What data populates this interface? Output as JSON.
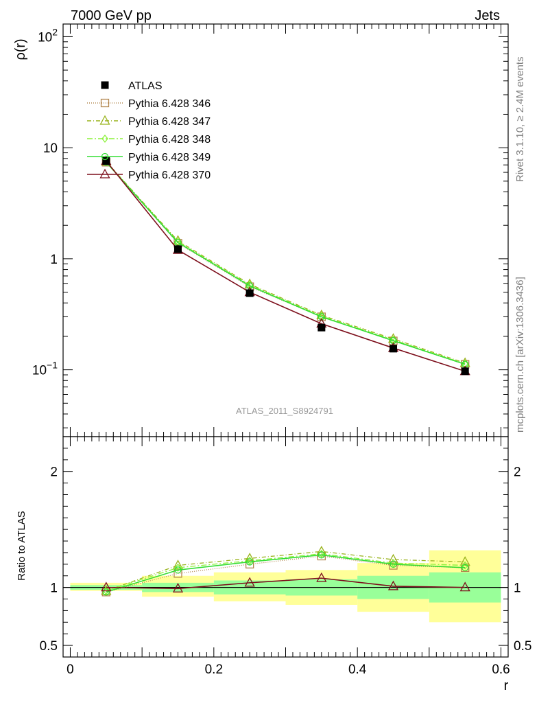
{
  "header": {
    "left": "7000 GeV pp",
    "right": "Jets"
  },
  "side_labels": {
    "top": "Rivet 3.1.10, ≥ 2.4M events",
    "bottom": "mcplots.cern.ch [arXiv:1306.3436]"
  },
  "watermark": "ATLAS_2011_S8924791",
  "colors": {
    "atlas": "#000000",
    "p346": "#b2874f",
    "p347": "#99b31c",
    "p348": "#8cf23a",
    "p349": "#33dd33",
    "p370": "#7d0f1c",
    "band_inner": "#99ff99",
    "band_outer": "#ffff99"
  },
  "chart_data": [
    {
      "type": "line",
      "panel": "main",
      "ylabel": "ρ(r)",
      "xlabel": "",
      "log_y": true,
      "xlim": [
        -0.01,
        0.61
      ],
      "ylim": [
        0.025,
        130
      ],
      "y_ticks": [
        {
          "value": 100,
          "label": "10",
          "exp": "2"
        },
        {
          "value": 10,
          "label": "10",
          "exp": ""
        },
        {
          "value": 1,
          "label": "1",
          "exp": ""
        },
        {
          "value": 0.1,
          "label": "10",
          "exp": "−1"
        }
      ],
      "legend_position": "top-left",
      "x": [
        0.05,
        0.15,
        0.25,
        0.35,
        0.45,
        0.55
      ],
      "series": [
        {
          "key": "atlas",
          "name": "ATLAS",
          "values": [
            7.6,
            1.22,
            0.49,
            0.24,
            0.155,
            0.097
          ],
          "marker": "square-filled",
          "dash": "none"
        },
        {
          "key": "p346",
          "name": "Pythia 6.428 346",
          "values": [
            7.4,
            1.38,
            0.56,
            0.3,
            0.182,
            0.112
          ],
          "marker": "square-open",
          "dash": "1,2"
        },
        {
          "key": "p347",
          "name": "Pythia 6.428 347",
          "values": [
            7.5,
            1.45,
            0.59,
            0.31,
            0.19,
            0.115
          ],
          "marker": "triangle-open",
          "dash": "6,3,1,3"
        },
        {
          "key": "p348",
          "name": "Pythia 6.428 348",
          "values": [
            7.45,
            1.42,
            0.58,
            0.305,
            0.186,
            0.113
          ],
          "marker": "diamond-open",
          "dash": "8,3,2,3"
        },
        {
          "key": "p349",
          "name": "Pythia 6.428 349",
          "values": [
            7.4,
            1.4,
            0.57,
            0.3,
            0.183,
            0.112
          ],
          "marker": "circle-open",
          "dash": "none"
        },
        {
          "key": "p370",
          "name": "Pythia 6.428 370",
          "values": [
            7.6,
            1.2,
            0.5,
            0.26,
            0.157,
            0.097
          ],
          "marker": "triangle-open",
          "dash": "none"
        }
      ]
    },
    {
      "type": "line",
      "panel": "ratio",
      "ylabel": "Ratio to ATLAS",
      "xlabel": "r",
      "xlim": [
        -0.01,
        0.61
      ],
      "ylim": [
        0.4,
        2.3
      ],
      "x_ticks": [
        {
          "value": 0,
          "label": "0"
        },
        {
          "value": 0.2,
          "label": "0.2"
        },
        {
          "value": 0.4,
          "label": "0.4"
        },
        {
          "value": 0.6,
          "label": "0.6"
        }
      ],
      "y_ticks": [
        {
          "value": 0.5,
          "label": "0.5"
        },
        {
          "value": 1,
          "label": "1"
        },
        {
          "value": 2,
          "label": "2"
        }
      ],
      "bands": [
        {
          "x0": 0.0,
          "x1": 0.1,
          "inner": [
            0.98,
            1.02
          ],
          "outer": [
            0.97,
            1.04
          ]
        },
        {
          "x0": 0.1,
          "x1": 0.2,
          "inner": [
            0.96,
            1.04
          ],
          "outer": [
            0.92,
            1.1
          ]
        },
        {
          "x0": 0.2,
          "x1": 0.3,
          "inner": [
            0.94,
            1.06
          ],
          "outer": [
            0.88,
            1.13
          ]
        },
        {
          "x0": 0.3,
          "x1": 0.4,
          "inner": [
            0.93,
            1.07
          ],
          "outer": [
            0.85,
            1.15
          ]
        },
        {
          "x0": 0.4,
          "x1": 0.5,
          "inner": [
            0.9,
            1.1
          ],
          "outer": [
            0.79,
            1.21
          ]
        },
        {
          "x0": 0.5,
          "x1": 0.6,
          "inner": [
            0.87,
            1.13
          ],
          "outer": [
            0.7,
            1.32
          ]
        }
      ],
      "x": [
        0.05,
        0.15,
        0.25,
        0.35,
        0.45,
        0.55
      ],
      "series": [
        {
          "key": "p346",
          "values": [
            0.96,
            1.12,
            1.2,
            1.27,
            1.19,
            1.17
          ]
        },
        {
          "key": "p347",
          "values": [
            0.97,
            1.19,
            1.25,
            1.31,
            1.24,
            1.22
          ]
        },
        {
          "key": "p348",
          "values": [
            0.97,
            1.17,
            1.23,
            1.29,
            1.21,
            1.19
          ]
        },
        {
          "key": "p349",
          "values": [
            0.96,
            1.15,
            1.22,
            1.28,
            1.2,
            1.17
          ]
        },
        {
          "key": "p370",
          "values": [
            1.0,
            0.99,
            1.04,
            1.08,
            1.01,
            1.0
          ]
        }
      ]
    }
  ]
}
